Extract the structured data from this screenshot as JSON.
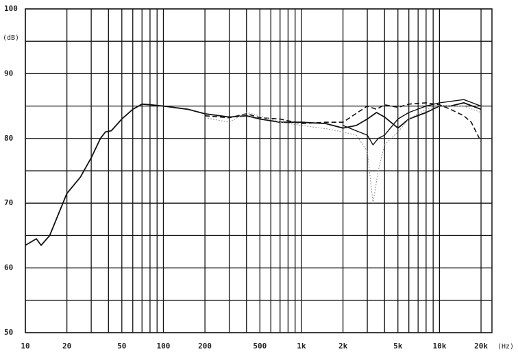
{
  "chart_data": {
    "type": "line",
    "y_unit": "(dB)",
    "x_unit": "(Hz)",
    "xscale": "log",
    "xlim": [
      10,
      24000
    ],
    "ylim": [
      50,
      100
    ],
    "xticks": [
      10,
      20,
      50,
      100,
      200,
      500,
      {
        "value": 1000,
        "label": "1k"
      },
      {
        "value": 2000,
        "label": "2k"
      },
      {
        "value": 5000,
        "label": "5k"
      },
      {
        "value": 10000,
        "label": "10k"
      },
      {
        "value": 20000,
        "label": "20k"
      }
    ],
    "xminor": [
      30,
      40,
      60,
      70,
      80,
      90,
      300,
      400,
      600,
      700,
      800,
      900,
      3000,
      4000,
      6000,
      7000,
      8000,
      9000
    ],
    "yticks": [
      50,
      60,
      70,
      80,
      90,
      100
    ],
    "yminor": [
      55,
      65,
      75,
      85,
      95
    ],
    "grid": true,
    "series": [
      {
        "color": "#111111",
        "dash": "solid",
        "width": 1.8,
        "x": [
          10,
          12,
          13,
          15,
          20,
          25,
          30,
          35,
          38,
          42,
          50,
          60,
          70,
          80,
          100,
          150,
          200,
          300,
          400,
          500,
          700,
          1000,
          1500,
          2000,
          2500,
          3000,
          3500,
          4000,
          5000,
          6000,
          8000,
          10000,
          12000,
          15000,
          20000
        ],
        "values": [
          63.5,
          64.5,
          63.5,
          65,
          71.5,
          74,
          77,
          80,
          81,
          81.2,
          83,
          84.5,
          85.3,
          85.2,
          85,
          84.5,
          83.8,
          83.3,
          83.5,
          83,
          82.5,
          82.5,
          82.3,
          81.6,
          82,
          83,
          84,
          83.3,
          81.6,
          83,
          84,
          85,
          85,
          85.5,
          84.5
        ]
      },
      {
        "color": "#111111",
        "dash": "dashed",
        "width": 1.6,
        "x": [
          200,
          300,
          400,
          500,
          700,
          1000,
          1500,
          2000,
          3000,
          3500,
          4000,
          5000,
          6000,
          8000,
          10000,
          12000,
          15000,
          17000,
          20000
        ],
        "values": [
          83.5,
          83.2,
          83.8,
          83.2,
          83,
          82.3,
          82.5,
          82.5,
          85,
          84.5,
          85.2,
          84.8,
          85.3,
          85.5,
          85.2,
          84.5,
          83.5,
          82.5,
          79.5
        ]
      },
      {
        "color": "#999999",
        "dash": "dotted",
        "width": 1.1,
        "x": [
          200,
          300,
          400,
          500,
          700,
          1000,
          1500,
          2000,
          2500,
          3000,
          3300,
          3600,
          4000,
          5000,
          6000,
          8000,
          10000,
          15000,
          20000
        ],
        "values": [
          83.2,
          82.5,
          84,
          83.5,
          82.5,
          82,
          81.5,
          81,
          80.5,
          78,
          70,
          75,
          79,
          81,
          83,
          84.5,
          85,
          85,
          84
        ]
      },
      {
        "color": "#111111",
        "dash": "solid",
        "width": 1.4,
        "x": [
          2000,
          3000,
          3300,
          3600,
          4000,
          5000,
          6000,
          8000,
          10000,
          15000,
          20000
        ],
        "values": [
          82,
          80.5,
          79,
          80,
          80.5,
          83,
          84,
          85,
          85.5,
          86,
          85
        ]
      }
    ]
  }
}
